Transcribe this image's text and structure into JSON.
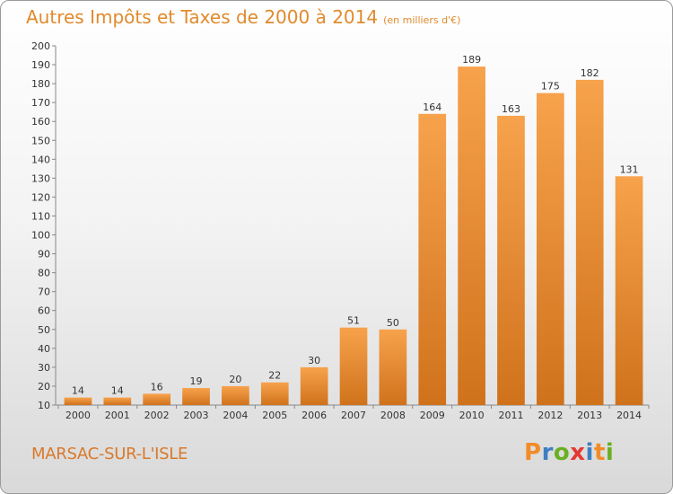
{
  "header": {
    "title": "Autres Impôts et Taxes de 2000 à 2014",
    "unit": "(en milliers d'€)"
  },
  "footer": {
    "commune": "MARSAC-SUR-L'ISLE",
    "logo_text": "Proxiti",
    "logo_colors": [
      "#f28c28",
      "#3f7fc1",
      "#6ab023",
      "#e53935",
      "#3f7fc1",
      "#f28c28",
      "#6ab023"
    ]
  },
  "chart_data": {
    "type": "bar",
    "categories": [
      "2000",
      "2001",
      "2002",
      "2003",
      "2004",
      "2005",
      "2006",
      "2007",
      "2008",
      "2009",
      "2010",
      "2011",
      "2012",
      "2013",
      "2014"
    ],
    "values": [
      14,
      14,
      16,
      19,
      20,
      22,
      30,
      51,
      50,
      164,
      189,
      163,
      175,
      182,
      131
    ],
    "ylim": [
      10,
      200
    ],
    "yticks": [
      10,
      20,
      30,
      40,
      50,
      60,
      70,
      80,
      90,
      100,
      110,
      120,
      130,
      140,
      150,
      160,
      170,
      180,
      190,
      200
    ],
    "grid": false,
    "bar_color_top": "#f7a24c",
    "bar_color_bottom": "#d0721c",
    "data_labels": true
  }
}
